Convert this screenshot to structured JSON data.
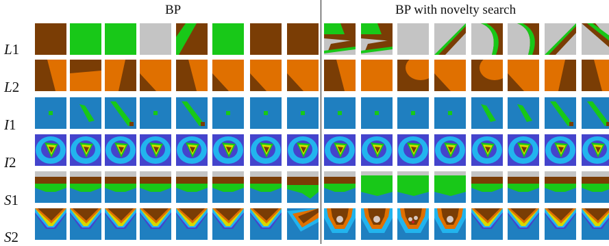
{
  "headers": {
    "left": "BP",
    "right": "BP with novelty search"
  },
  "row_labels": [
    {
      "letter": "L",
      "num": "1"
    },
    {
      "letter": "L",
      "num": "2"
    },
    {
      "letter": "I",
      "num": "1"
    },
    {
      "letter": "I",
      "num": "2"
    },
    {
      "letter": "S",
      "num": "1"
    },
    {
      "letter": "S",
      "num": "2"
    }
  ],
  "colors": {
    "dark_brown": "#7a3d05",
    "orange": "#e07000",
    "green": "#18c818",
    "gray": "#c4c4c4",
    "blue": "#1f7fc0",
    "indigo": "#4444cc",
    "light_blue": "#22b4ee",
    "yellow": "#d8d800",
    "red": "#d02020",
    "pale": "#d8c8c0"
  },
  "tiles": {
    "L1": [
      "brown",
      "green",
      "green",
      "gray",
      "green-brown-diag",
      "green",
      "brown",
      "brown",
      "gray-brown-band",
      "gray-brown-band",
      "gray",
      "gray-diag",
      "gray-brown-arc",
      "gray-brown-arc",
      "gray-diag",
      "gray-brown-diag"
    ],
    "L2": [
      "brown-orange-split",
      "orange-brown-top",
      "orange-brown-right",
      "orange-brown-corner",
      "brown-orange-split",
      "orange-brown-corner",
      "orange-brown-corner",
      "orange-brown-corner",
      "brown-orange-split",
      "orange",
      "brown-orange-blob",
      "orange-brown-corner",
      "brown-orange-blob",
      "orange-brown-corner",
      "orange-brown-right",
      "brown-orange-split"
    ],
    "I1": [
      "dot",
      "streak",
      "streak-long",
      "dot",
      "streak-long",
      "dot",
      "dot",
      "dot",
      "dot",
      "dot",
      "dot",
      "dot",
      "streak",
      "streak",
      "streak-long",
      "streak-long"
    ],
    "I2": [
      "target",
      "target",
      "target",
      "target",
      "target",
      "target",
      "target",
      "target",
      "target",
      "target",
      "target",
      "target",
      "target",
      "target",
      "target",
      "target"
    ],
    "S1": [
      "bands",
      "bands",
      "bands",
      "bands",
      "bands",
      "bands",
      "bands",
      "bands-right",
      "bands",
      "green-dome",
      "green-dome",
      "green-dome",
      "bands",
      "bands",
      "bands",
      "bands"
    ],
    "S2": [
      "valley",
      "valley",
      "valley",
      "valley",
      "valley",
      "valley",
      "valley",
      "valley-skew",
      "pit",
      "pit",
      "pit-two",
      "pit",
      "valley",
      "valley",
      "valley",
      "valley"
    ]
  }
}
